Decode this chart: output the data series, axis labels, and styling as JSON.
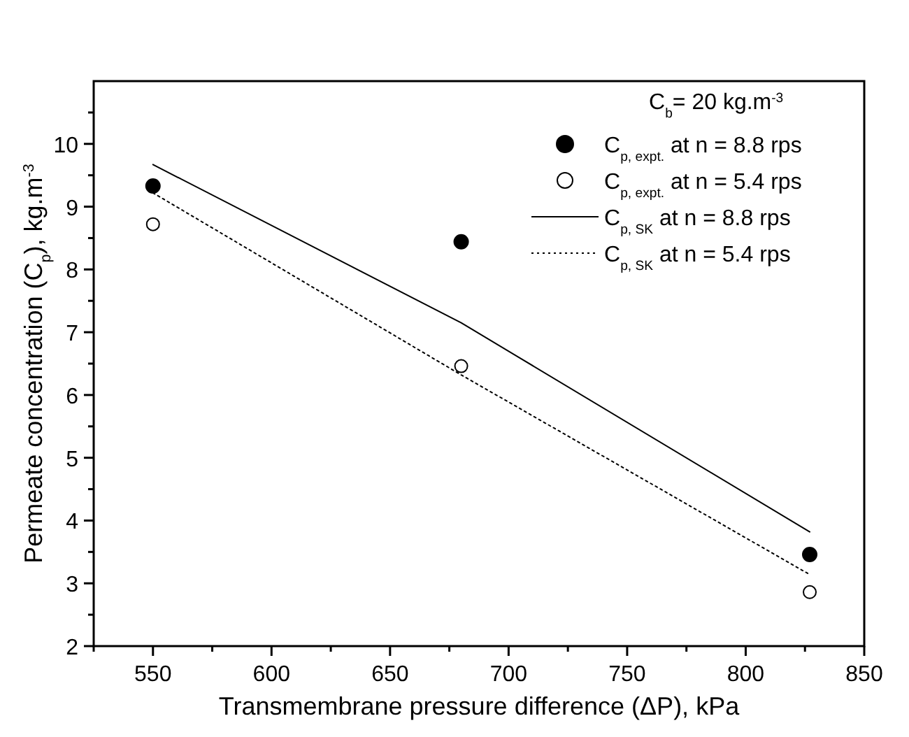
{
  "chart_data": {
    "type": "scatter",
    "xlabel": "Transmembrane pressure difference (ΔP), kPa",
    "ylabel": "Permeate concentration (C$_{p}$), kg.m$^{-3}$",
    "legend_title": "C$_{b}$= 20 kg.m$^{-3}$",
    "legend": "top right",
    "grid": false,
    "xlim": [
      525,
      850
    ],
    "xticks": [
      {
        "value": 525,
        "label": null
      },
      550,
      {
        "value": 575,
        "label": null
      },
      600,
      {
        "value": 625,
        "label": null
      },
      650,
      {
        "value": 675,
        "label": null
      },
      700,
      {
        "value": 725,
        "label": null
      },
      750,
      {
        "value": 775,
        "label": null
      },
      800,
      {
        "value": 825,
        "label": null
      },
      850
    ],
    "ylim": [
      2,
      11
    ],
    "yticks": [
      2,
      {
        "value": 2.5,
        "label": null
      },
      3,
      {
        "value": 3.5,
        "label": null
      },
      4,
      {
        "value": 4.5,
        "label": null
      },
      5,
      {
        "value": 5.5,
        "label": null
      },
      6,
      {
        "value": 6.5,
        "label": null
      },
      7,
      {
        "value": 7.5,
        "label": null
      },
      8,
      {
        "value": 8.5,
        "label": null
      },
      9,
      {
        "value": 9.5,
        "label": null
      },
      10,
      {
        "value": 10.5,
        "label": null
      }
    ],
    "series": [
      {
        "name": "C$_{p,  expt.}$ at n = 8.8 rps",
        "marker": "circle",
        "color": "#000000",
        "x": [
          550,
          680,
          827
        ],
        "values": [
          9.33,
          8.44,
          3.46
        ]
      },
      {
        "name": "C$_{p,  expt.}$ at n = 5.4 rps",
        "marker": "circle-open",
        "color": "#000000",
        "x": [
          550,
          680,
          827
        ],
        "values": [
          8.72,
          6.46,
          2.86
        ]
      },
      {
        "name": "C$_{p,  SK}$ at n = 8.8 rps",
        "type": "line",
        "line_style": "solid",
        "color": "#000000",
        "x": [
          550,
          680,
          827
        ],
        "values": [
          9.67,
          7.15,
          3.82
        ]
      },
      {
        "name": "C$_{p,  SK}$ at n = 5.4 rps",
        "type": "line",
        "line_style": "dotted",
        "color": "#000000",
        "x": [
          550,
          680,
          827
        ],
        "values": [
          9.22,
          6.32,
          3.14
        ]
      }
    ]
  }
}
